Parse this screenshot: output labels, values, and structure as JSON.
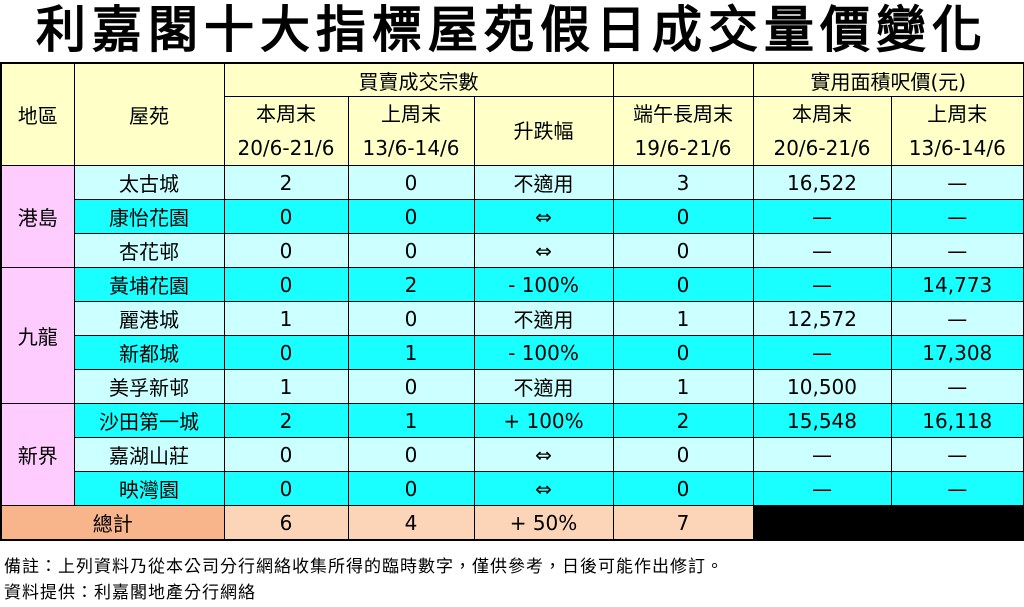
{
  "title": "利嘉閣十大指標屋苑假日成交量價變化",
  "table": {
    "header": {
      "region": "地區",
      "estate": "屋苑",
      "group_transactions": "買賣成交宗數",
      "group_price": "實用面積呎價(元)",
      "this_weekend": "本周末",
      "this_dates": "20/6-21/6",
      "last_weekend": "上周末",
      "last_dates": "13/6-14/6",
      "change": "升跌幅",
      "holiday": "端午長周末",
      "holiday_dates": "19/6-21/6",
      "price_this": "本周末",
      "price_this_dates": "20/6-21/6",
      "price_last": "上周末",
      "price_last_dates": "13/6-14/6"
    },
    "groups": [
      {
        "region": "港島",
        "rows": [
          [
            "太古城",
            2,
            0,
            "不適用",
            3,
            "16,522",
            "—"
          ],
          [
            "康怡花園",
            0,
            0,
            "⇔",
            0,
            "—",
            "—"
          ],
          [
            "杏花邨",
            0,
            0,
            "⇔",
            0,
            "—",
            "—"
          ]
        ]
      },
      {
        "region": "九龍",
        "rows": [
          [
            "黃埔花園",
            0,
            2,
            "- 100%",
            0,
            "—",
            "14,773"
          ],
          [
            "麗港城",
            1,
            0,
            "不適用",
            1,
            "12,572",
            "—"
          ],
          [
            "新都城",
            0,
            1,
            "- 100%",
            0,
            "—",
            "17,308"
          ],
          [
            "美孚新邨",
            1,
            0,
            "不適用",
            1,
            "10,500",
            "—"
          ]
        ]
      },
      {
        "region": "新界",
        "rows": [
          [
            "沙田第一城",
            2,
            1,
            "+ 100%",
            2,
            "15,548",
            "16,118"
          ],
          [
            "嘉湖山莊",
            0,
            0,
            "⇔",
            0,
            "—",
            "—"
          ],
          [
            "映灣園",
            0,
            0,
            "⇔",
            0,
            "—",
            "—"
          ]
        ]
      }
    ],
    "total": [
      "總計",
      6,
      4,
      "+ 50%",
      7
    ]
  },
  "notes": [
    "備註：上列資料乃從本公司分行網絡收集所得的臨時數字，僅供參考，日後可能作出修訂。",
    "資料提供：利嘉閣地產分行網絡"
  ]
}
